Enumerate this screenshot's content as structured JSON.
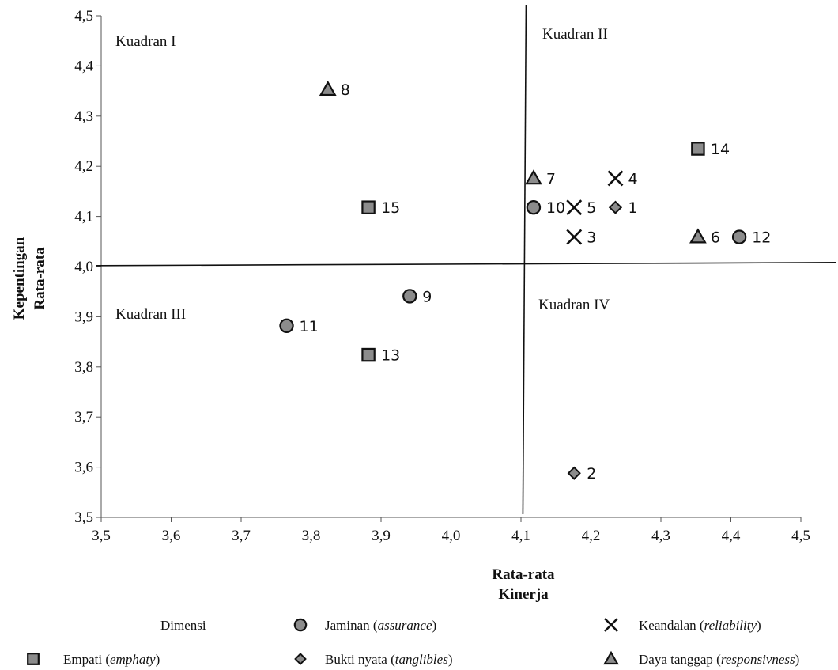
{
  "chart_data": {
    "type": "scatter",
    "title": "",
    "xlabel_lines": [
      "Rata-rata",
      "Kinerja"
    ],
    "ylabel_lines": [
      "Kepentingan",
      "Rata-rata"
    ],
    "xlim": [
      3.5,
      4.5
    ],
    "ylim": [
      3.5,
      4.5
    ],
    "x_ticks": [
      3.5,
      3.6,
      3.7,
      3.8,
      3.9,
      4.0,
      4.1,
      4.2,
      4.3,
      4.4,
      4.5
    ],
    "y_ticks": [
      3.5,
      3.6,
      3.7,
      3.8,
      3.9,
      4.0,
      4.1,
      4.2,
      4.3,
      4.4,
      4.5
    ],
    "x_tick_labels": [
      "3,5",
      "3,6",
      "3,7",
      "3,8",
      "3,9",
      "4,0",
      "4,1",
      "4,2",
      "4,3",
      "4,4",
      "4,5"
    ],
    "y_tick_labels": [
      "3,5",
      "3,6",
      "3,7",
      "3,8",
      "3,9",
      "4,0",
      "4,1",
      "4,2",
      "4,3",
      "4,4",
      "4,5"
    ],
    "grid": false,
    "dividers": {
      "x": 4.105,
      "y": 4.005
    },
    "quadrants": [
      "Kuadran I",
      "Kuadran II",
      "Kuadran III",
      "Kuadran IV"
    ],
    "legend_title": "Dimensi",
    "series": [
      {
        "name": "Bukti nyata (tanglibles)",
        "name_plain": "Bukti nyata (",
        "name_italic": "tanglibles",
        "name_close": ")",
        "marker": "diamond",
        "points": [
          {
            "label": "1",
            "x": 4.235,
            "y": 4.118
          },
          {
            "label": "2",
            "x": 4.176,
            "y": 3.588
          }
        ]
      },
      {
        "name": "Keandalan (reliability)",
        "name_plain": "Keandalan (",
        "name_italic": "reliability",
        "name_close": ")",
        "marker": "x",
        "points": [
          {
            "label": "3",
            "x": 4.176,
            "y": 4.059
          },
          {
            "label": "4",
            "x": 4.235,
            "y": 4.176
          },
          {
            "label": "5",
            "x": 4.176,
            "y": 4.118
          }
        ]
      },
      {
        "name": "Daya tanggap (responsivness)",
        "name_plain": "Daya tanggap (",
        "name_italic": "responsivness",
        "name_close": ")",
        "marker": "triangle",
        "points": [
          {
            "label": "6",
            "x": 4.353,
            "y": 4.059
          },
          {
            "label": "7",
            "x": 4.118,
            "y": 4.176
          },
          {
            "label": "8",
            "x": 3.824,
            "y": 4.353
          }
        ]
      },
      {
        "name": "Jaminan (assurance)",
        "name_plain": "Jaminan (",
        "name_italic": "assurance",
        "name_close": ")",
        "marker": "circle",
        "points": [
          {
            "label": "9",
            "x": 3.941,
            "y": 3.941
          },
          {
            "label": "10",
            "x": 4.118,
            "y": 4.118
          },
          {
            "label": "11",
            "x": 3.765,
            "y": 3.882
          },
          {
            "label": "12",
            "x": 4.412,
            "y": 4.059
          }
        ]
      },
      {
        "name": "Empati (emphaty)",
        "name_plain": "Empati (",
        "name_italic": "emphaty",
        "name_close": ")",
        "marker": "square",
        "points": [
          {
            "label": "13",
            "x": 3.882,
            "y": 3.824
          },
          {
            "label": "14",
            "x": 4.353,
            "y": 4.235
          },
          {
            "label": "15",
            "x": 3.882,
            "y": 4.118
          }
        ]
      }
    ],
    "legend_order": [
      3,
      1,
      4,
      0,
      2
    ]
  }
}
